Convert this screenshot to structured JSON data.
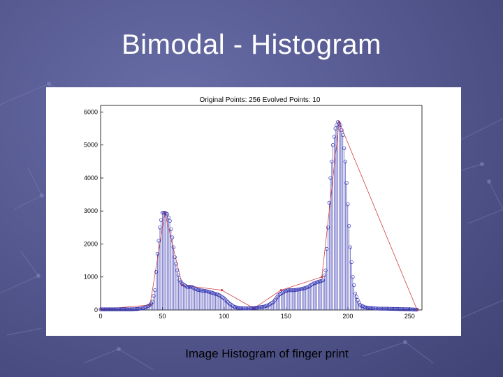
{
  "slide": {
    "title": "Bimodal - Histogram",
    "caption": "Image Histogram of finger print"
  },
  "colors": {
    "background": "#52568c",
    "histogram": "#3030b0",
    "evolved": "#d04040",
    "caption": "#000000"
  },
  "chart_data": {
    "type": "bar",
    "title": "Original Points: 256   Evolved Points: 10",
    "xlabel": "",
    "ylabel": "",
    "xlim": [
      0,
      260
    ],
    "ylim": [
      0,
      6200
    ],
    "xticks": [
      0,
      50,
      100,
      150,
      200,
      250
    ],
    "yticks": [
      0,
      1000,
      2000,
      3000,
      4000,
      5000,
      6000
    ],
    "grid": false,
    "legend": "none",
    "series": [
      {
        "kind": "histogram",
        "x": [
          0,
          5,
          10,
          15,
          20,
          25,
          30,
          35,
          40,
          42,
          44,
          46,
          48,
          50,
          52,
          54,
          56,
          58,
          60,
          62,
          64,
          66,
          68,
          70,
          72,
          74,
          76,
          78,
          80,
          84,
          88,
          92,
          96,
          100,
          104,
          108,
          112,
          116,
          120,
          124,
          128,
          132,
          136,
          140,
          144,
          148,
          152,
          156,
          160,
          164,
          168,
          172,
          176,
          180,
          182,
          184,
          186,
          188,
          190,
          192,
          194,
          196,
          198,
          200,
          202,
          204,
          206,
          208,
          210,
          214,
          218,
          222,
          226,
          230,
          240,
          250,
          256
        ],
        "values": [
          20,
          20,
          20,
          20,
          20,
          20,
          30,
          60,
          150,
          250,
          600,
          1700,
          2500,
          2950,
          2950,
          2900,
          2700,
          2200,
          1600,
          1200,
          900,
          800,
          750,
          700,
          700,
          700,
          650,
          620,
          600,
          580,
          550,
          500,
          450,
          350,
          200,
          100,
          60,
          50,
          50,
          60,
          80,
          100,
          150,
          250,
          450,
          550,
          600,
          600,
          620,
          650,
          700,
          800,
          850,
          900,
          1200,
          2500,
          4000,
          5000,
          5500,
          5700,
          5600,
          5300,
          4500,
          3200,
          1900,
          1000,
          500,
          300,
          150,
          80,
          60,
          50,
          40,
          40,
          30,
          20,
          10
        ]
      },
      {
        "kind": "evolved",
        "x": [
          0,
          40,
          52,
          66,
          98,
          124,
          146,
          179,
          193,
          256
        ],
        "values": [
          20,
          150,
          2950,
          750,
          600,
          50,
          600,
          1000,
          5700,
          10
        ]
      }
    ]
  }
}
